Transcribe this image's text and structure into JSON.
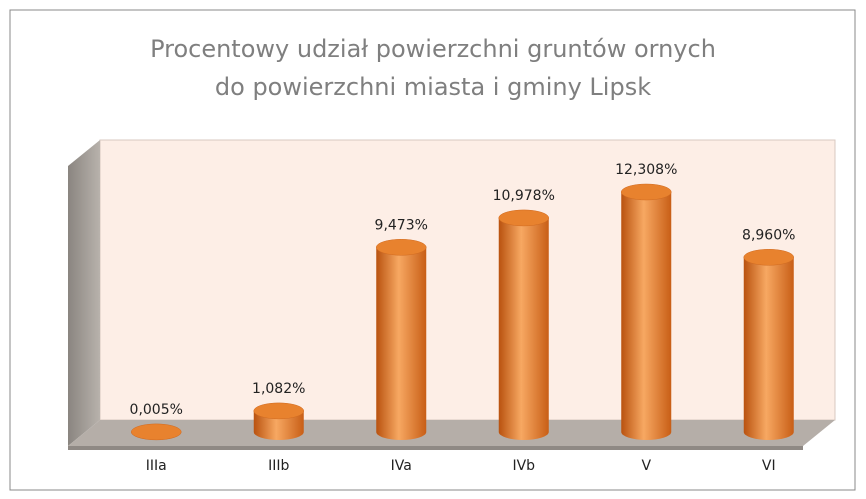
{
  "chart_data": {
    "type": "bar",
    "title": [
      "Procentowy udział  powierzchni gruntów ornych",
      "do powierzchni miasta i gminy Lipsk"
    ],
    "categories": [
      "IIIa",
      "IIIb",
      "IVa",
      "IVb",
      "V",
      "VI"
    ],
    "values": [
      0.005,
      1.082,
      9.473,
      10.978,
      12.308,
      8.96
    ],
    "value_labels": [
      "0,005%",
      "1,082%",
      "9,473%",
      "10,978%",
      "12,308%",
      "8,960%"
    ],
    "color": "#e8822e"
  }
}
